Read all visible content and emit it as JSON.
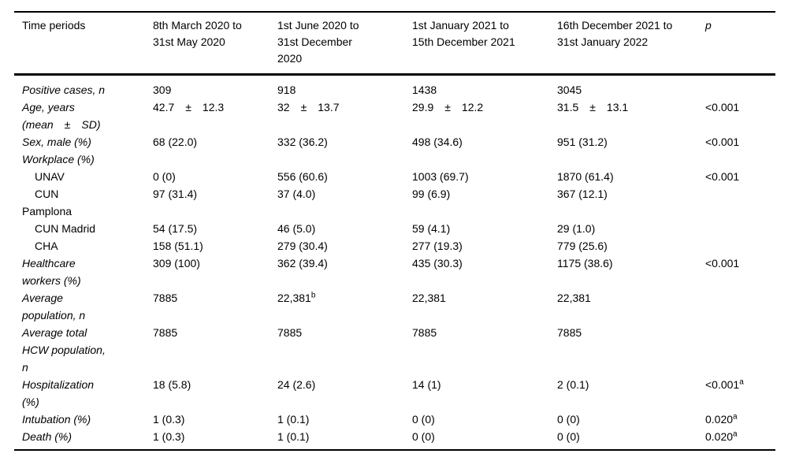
{
  "colors": {
    "text": "#000000",
    "border": "#000000",
    "background": "#ffffff"
  },
  "table": {
    "header": {
      "col0": "Time periods",
      "periods": [
        [
          "8th March 2020 to",
          "31st May 2020"
        ],
        [
          "1st June 2020 to",
          "31st December",
          "2020"
        ],
        [
          "1st January 2021 to",
          "15th December 2021"
        ],
        [
          "16th December 2021 to",
          "31st January 2022"
        ]
      ],
      "p_label": "p"
    },
    "rows": [
      {
        "label_lines": [
          "Positive cases, n"
        ],
        "italic": true,
        "indent": false,
        "values": [
          "309",
          "918",
          "1438",
          "3045"
        ],
        "p": ""
      },
      {
        "label_lines": [
          "Age, years",
          "(mean ± SD)"
        ],
        "italic": true,
        "indent": false,
        "values": [
          "42.7 ± 12.3",
          "32 ± 13.7",
          "29.9 ± 12.2",
          "31.5 ± 13.1"
        ],
        "p": "<0.001"
      },
      {
        "label_lines": [
          "Sex, male (%)"
        ],
        "italic": true,
        "indent": false,
        "values": [
          "68 (22.0)",
          "332 (36.2)",
          "498 (34.6)",
          "951 (31.2)"
        ],
        "p": "<0.001"
      },
      {
        "label_lines": [
          "Workplace (%)"
        ],
        "italic": true,
        "indent": false,
        "values": [
          "",
          "",
          "",
          ""
        ],
        "p": ""
      },
      {
        "label_lines": [
          "UNAV"
        ],
        "italic": false,
        "indent": true,
        "values": [
          "0 (0)",
          "556 (60.6)",
          "1003 (69.7)",
          "1870 (61.4)"
        ],
        "p": "<0.001"
      },
      {
        "label_lines": [
          "CUN",
          "Pamplona"
        ],
        "italic": false,
        "indent": true,
        "values": [
          "97 (31.4)",
          "37 (4.0)",
          "99 (6.9)",
          "367 (12.1)"
        ],
        "p": ""
      },
      {
        "label_lines": [
          "CUN Madrid"
        ],
        "italic": false,
        "indent": true,
        "values": [
          "54 (17.5)",
          "46 (5.0)",
          "59 (4.1)",
          "29 (1.0)"
        ],
        "p": ""
      },
      {
        "label_lines": [
          "CHA"
        ],
        "italic": false,
        "indent": true,
        "values": [
          "158 (51.1)",
          "279 (30.4)",
          "277 (19.3)",
          "779 (25.6)"
        ],
        "p": ""
      },
      {
        "label_lines": [
          "Healthcare",
          "workers (%)"
        ],
        "italic": true,
        "indent": false,
        "values": [
          "309 (100)",
          "362 (39.4)",
          "435 (30.3)",
          "1175 (38.6)"
        ],
        "p": "<0.001"
      },
      {
        "label_lines": [
          "Average",
          "population, n"
        ],
        "italic": true,
        "indent": false,
        "values": [
          "7885",
          {
            "text": "22,381",
            "sup": "b"
          },
          "22,381",
          "22,381"
        ],
        "p": ""
      },
      {
        "label_lines": [
          "Average total",
          "HCW population,",
          "n"
        ],
        "italic": true,
        "indent": false,
        "values": [
          "7885",
          "7885",
          "7885",
          "7885"
        ],
        "p": ""
      },
      {
        "label_lines": [
          "Hospitalization",
          "(%)"
        ],
        "italic": true,
        "indent": false,
        "values": [
          "18 (5.8)",
          "24 (2.6)",
          "14 (1)",
          "2 (0.1)"
        ],
        "p": {
          "text": "<0.001",
          "sup": "a"
        }
      },
      {
        "label_lines": [
          "Intubation (%)"
        ],
        "italic": true,
        "indent": false,
        "values": [
          "1 (0.3)",
          "1 (0.1)",
          "0 (0)",
          "0 (0)"
        ],
        "p": {
          "text": "0.020",
          "sup": "a"
        }
      },
      {
        "label_lines": [
          "Death (%)"
        ],
        "italic": true,
        "indent": false,
        "values": [
          "1 (0.3)",
          "1 (0.1)",
          "0 (0)",
          "0 (0)"
        ],
        "p": {
          "text": "0.020",
          "sup": "a"
        }
      }
    ]
  }
}
